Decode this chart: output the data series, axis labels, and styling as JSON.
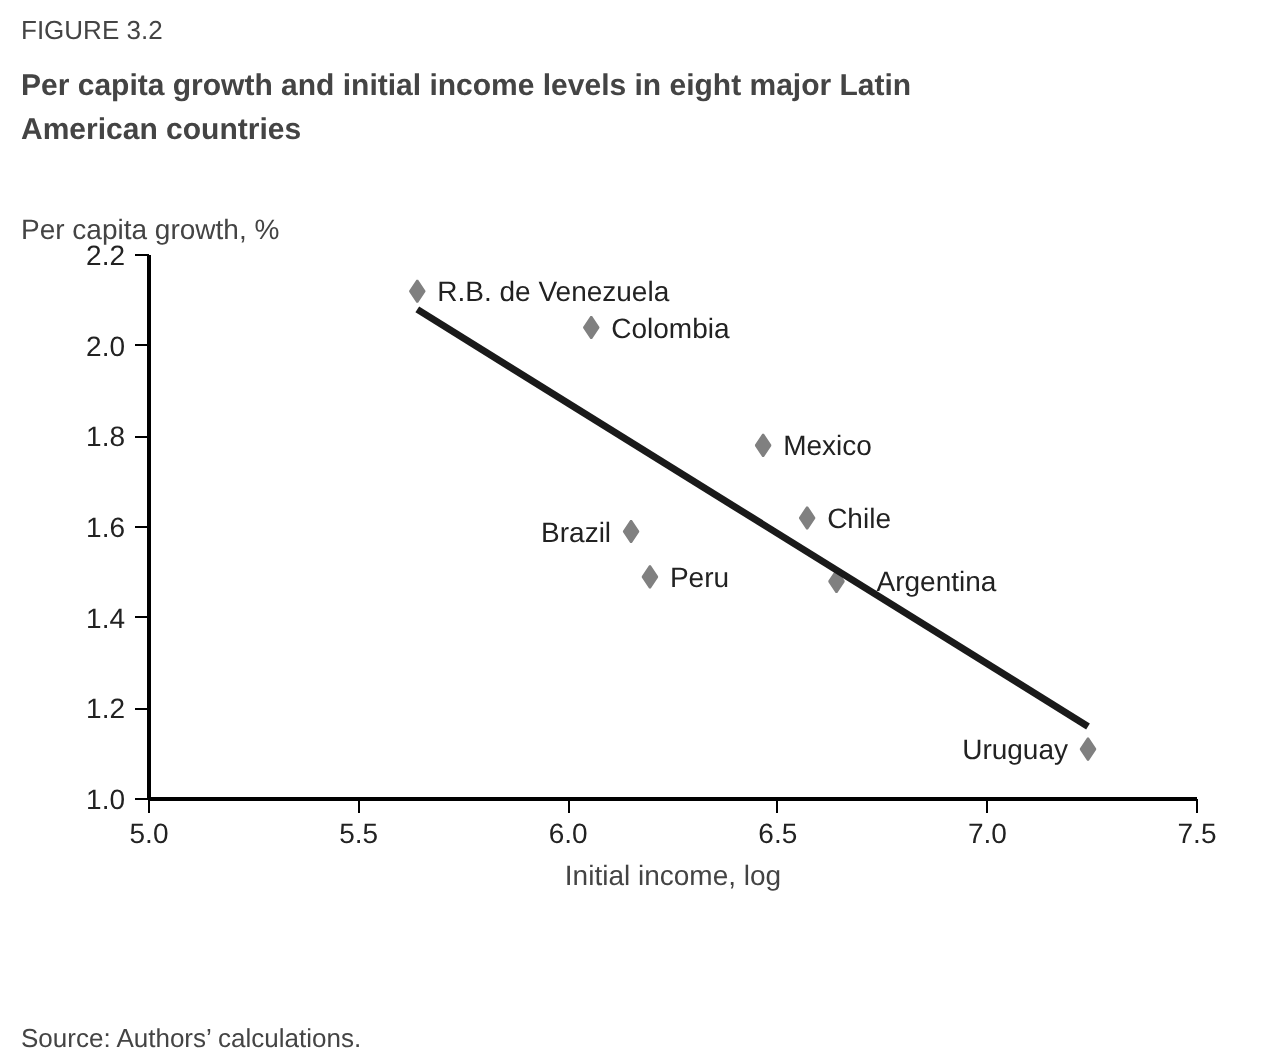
{
  "chart_data": {
    "type": "scatter",
    "title": "Per capita growth and initial income levels in eight major Latin American countries",
    "xlabel": "Initial income, log",
    "ylabel": "Per capita growth, %",
    "x": [
      5.64,
      6.055,
      6.465,
      6.57,
      6.15,
      6.195,
      6.64,
      7.24
    ],
    "series": [
      {
        "color": "#808080",
        "values": [
          2.12,
          2.04,
          1.78,
          1.62,
          1.59,
          1.49,
          1.48,
          1.11
        ],
        "marker": "diamond"
      },
      {
        "type": "line",
        "color": "#1a1a1a",
        "x": [
          5.64,
          7.24
        ],
        "values": [
          2.08,
          1.16
        ],
        "line_style": "solid"
      }
    ],
    "annotations": [
      "FIGURE 3.2",
      {
        "text": "R.B. de Venezuela",
        "x": 5.64,
        "y": 2.12
      },
      {
        "text": "Colombia",
        "x": 6.055,
        "y": 2.04
      },
      {
        "text": "Mexico",
        "x": 6.465,
        "y": 1.78
      },
      {
        "text": "Chile",
        "x": 6.57,
        "y": 1.62
      },
      {
        "text": "Brazil",
        "x": 6.15,
        "y": 1.59
      },
      {
        "text": "Peru",
        "x": 6.195,
        "y": 1.49
      },
      {
        "text": "Argentina",
        "x": 6.64,
        "y": 1.48
      },
      {
        "text": "Uruguay",
        "x": 7.24,
        "y": 1.11
      },
      "Source: Authors’ calculations."
    ],
    "xlim": [
      5.0,
      7.5
    ],
    "ylim": [
      1.0,
      2.2
    ],
    "xticks": [
      {
        "value": 5.0,
        "label": "5.0"
      },
      5.5,
      {
        "value": 6.0,
        "label": "6.0"
      },
      6.5,
      {
        "value": 7.0,
        "label": "7.0"
      },
      7.5
    ],
    "yticks": [
      {
        "value": 1.0,
        "label": "1.0"
      },
      1.2,
      1.4,
      1.6,
      1.8,
      {
        "value": 2.0,
        "label": "2.0"
      },
      2.2
    ],
    "grid": false
  }
}
